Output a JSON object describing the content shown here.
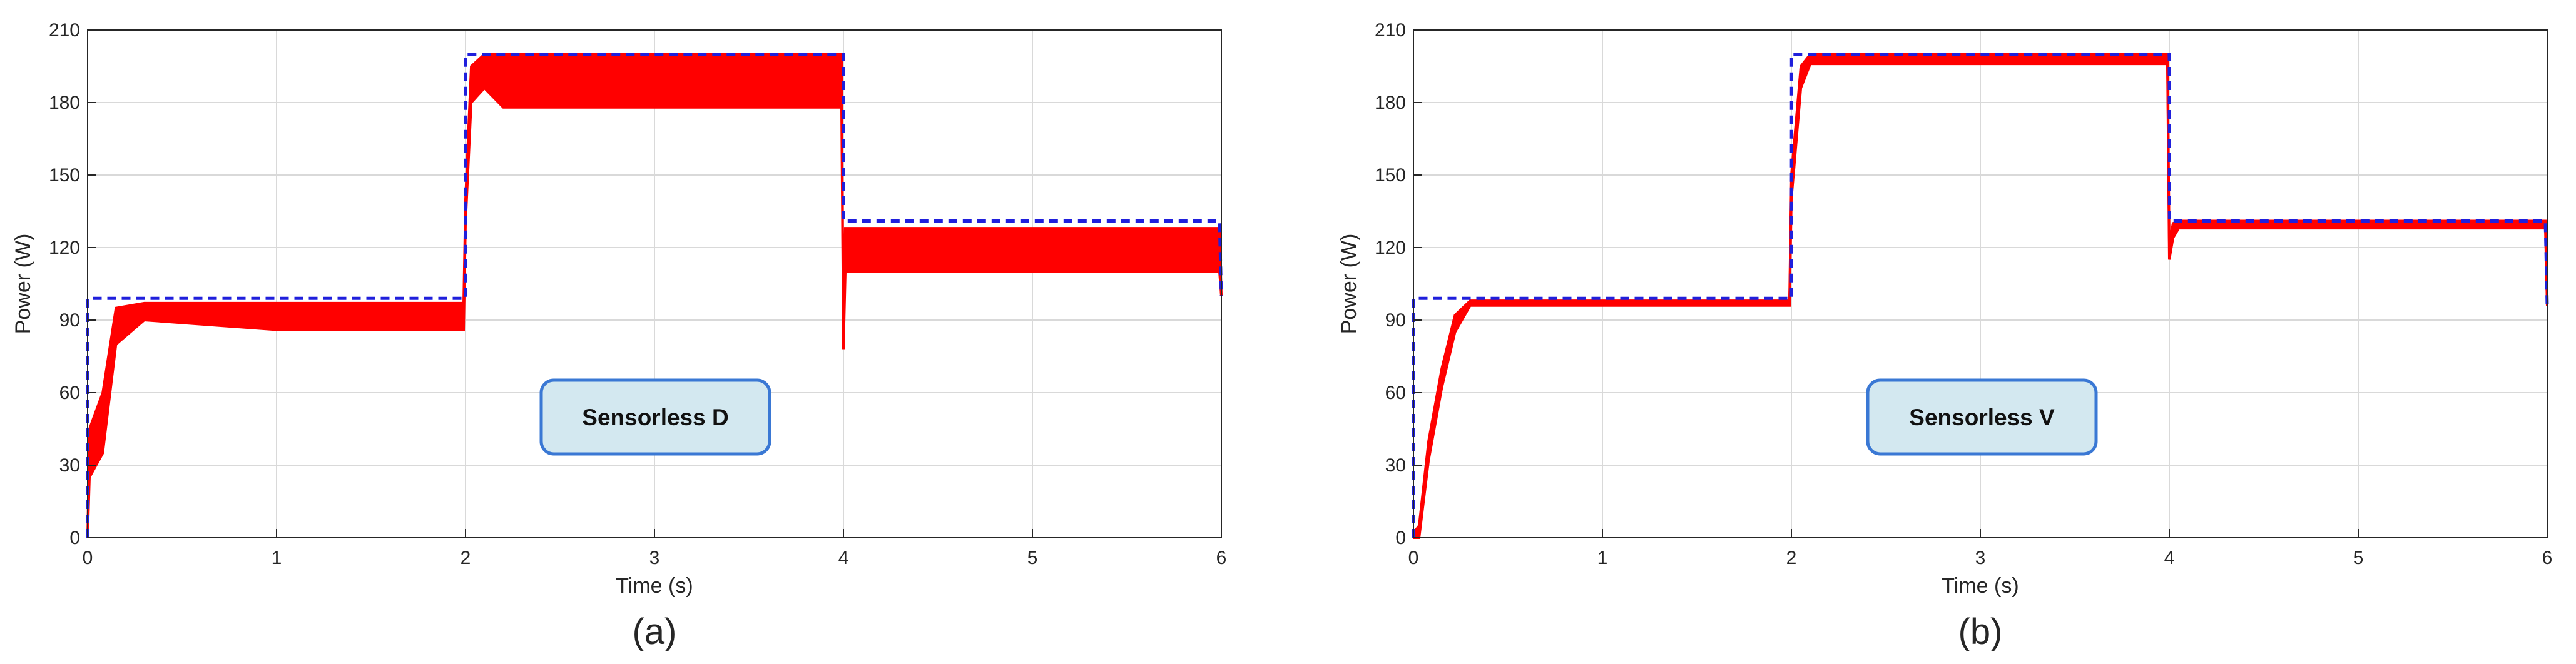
{
  "chart_data": [
    {
      "type": "line",
      "panel_label": "(a)",
      "annotation": "Sensorless D",
      "xlabel": "Time (s)",
      "ylabel": "Power (W)",
      "xlim": [
        0,
        6
      ],
      "ylim": [
        0,
        210
      ],
      "xticks": [
        0,
        1,
        2,
        3,
        4,
        5,
        6
      ],
      "yticks": [
        0,
        30,
        60,
        90,
        120,
        150,
        180,
        210
      ],
      "grid": true,
      "colors": {
        "reference": "#1f1fdc",
        "output": "#ff0000",
        "annotation_fill": "#d3e8f0",
        "annotation_border": "#3a78d4"
      },
      "series": [
        {
          "style": "dashed",
          "x": [
            0,
            0.001,
            2,
            2.001,
            4,
            4.001,
            5.99,
            6
          ],
          "y": [
            0,
            99,
            99,
            200,
            200,
            131,
            131,
            100
          ]
        },
        {
          "style": "solid-oscillating",
          "band_upper": {
            "x": [
              0,
              0.01,
              0.08,
              0.15,
              0.3,
              1.0,
              1.99,
              2.0,
              2.03,
              2.1,
              2.2,
              3.99,
              4.0,
              4.01,
              5.99,
              6.0
            ],
            "y": [
              0,
              45,
              60,
              95,
              97,
              97,
              97,
              140,
              195,
              200,
              200,
              200,
              78,
              128,
              128,
              100
            ]
          },
          "band_lower": {
            "x": [
              0,
              0.01,
              0.08,
              0.15,
              0.3,
              1.0,
              1.99,
              2.0,
              2.03,
              2.1,
              2.2,
              3.99,
              4.0,
              4.01,
              5.99,
              6.0
            ],
            "y": [
              0,
              25,
              35,
              80,
              90,
              86,
              86,
              130,
              180,
              186,
              178,
              178,
              78,
              110,
              110,
              100
            ]
          }
        }
      ]
    },
    {
      "type": "line",
      "panel_label": "(b)",
      "annotation": "Sensorless V",
      "xlabel": "Time (s)",
      "ylabel": "Power (W)",
      "xlim": [
        0,
        6
      ],
      "ylim": [
        0,
        210
      ],
      "xticks": [
        0,
        1,
        2,
        3,
        4,
        5,
        6
      ],
      "yticks": [
        0,
        30,
        60,
        90,
        120,
        150,
        180,
        210
      ],
      "grid": true,
      "colors": {
        "reference": "#1f1fdc",
        "output": "#ff0000",
        "annotation_fill": "#d3e8f0",
        "annotation_border": "#3a78d4"
      },
      "series": [
        {
          "style": "dashed",
          "x": [
            0,
            0.001,
            2,
            2.001,
            4,
            4.001,
            5.99,
            6
          ],
          "y": [
            0,
            99,
            99,
            200,
            200,
            131,
            131,
            96
          ]
        },
        {
          "style": "solid-oscillating",
          "band_upper": {
            "x": [
              0,
              0.03,
              0.08,
              0.15,
              0.22,
              0.3,
              1.99,
              2.0,
              2.05,
              2.1,
              3.99,
              4.0,
              4.02,
              4.05,
              5.99,
              6.0
            ],
            "y": [
              2,
              5,
              40,
              70,
              92,
              98,
              98,
              150,
              195,
              200,
              200,
              122,
              130,
              131,
              131,
              96
            ]
          },
          "band_lower": {
            "x": [
              0,
              0.03,
              0.08,
              0.15,
              0.22,
              0.3,
              1.99,
              2.0,
              2.05,
              2.1,
              3.99,
              4.0,
              4.02,
              4.05,
              5.99,
              6.0
            ],
            "y": [
              0,
              0,
              32,
              62,
              85,
              96,
              96,
              140,
              186,
              196,
              196,
              115,
              124,
              128,
              128,
              96
            ]
          }
        }
      ]
    }
  ]
}
